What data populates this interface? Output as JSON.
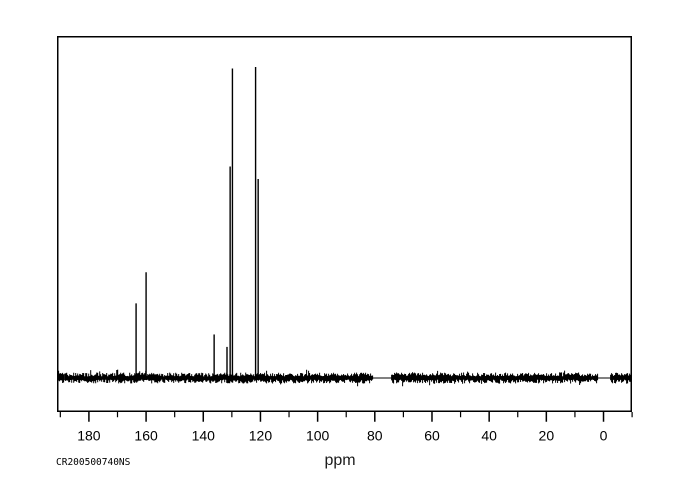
{
  "window": {
    "background": "#ffffff",
    "trace_color": "#000000"
  },
  "footer": {
    "id_label": "CR200500740NS"
  },
  "chart_data": {
    "type": "line",
    "subtype": "13C-NMR-spectrum",
    "title": "",
    "xlabel": "ppm",
    "ylabel": "",
    "grid": false,
    "legend": false,
    "x_axis": {
      "unit": "ppm",
      "reversed": true,
      "left_edge_ppm": 190.9,
      "right_edge_ppm": -9.7,
      "major_ticks": [
        180,
        160,
        140,
        120,
        100,
        80,
        60,
        40,
        20,
        0
      ],
      "minor_ticks": [
        190,
        170,
        150,
        130,
        110,
        90,
        70,
        50,
        30,
        10,
        -10
      ]
    },
    "y_axis": {
      "visible": false,
      "normalized_to_tallest_peak": 1.0
    },
    "peaks": [
      {
        "ppm": 163.5,
        "intensity": 0.24
      },
      {
        "ppm": 160.0,
        "intensity": 0.34
      },
      {
        "ppm": 136.2,
        "intensity": 0.14
      },
      {
        "ppm": 131.7,
        "intensity": 0.1
      },
      {
        "ppm": 130.6,
        "intensity": 0.68
      },
      {
        "ppm": 129.8,
        "intensity": 0.995
      },
      {
        "ppm": 121.7,
        "intensity": 1.0
      },
      {
        "ppm": 120.8,
        "intensity": 0.64
      }
    ],
    "baseline_noise": {
      "present": true,
      "relative_amplitude": 0.016,
      "flat_gaps_ppm": [
        [
          80.6,
          74.3
        ],
        [
          1.9,
          -2.3
        ]
      ]
    }
  }
}
